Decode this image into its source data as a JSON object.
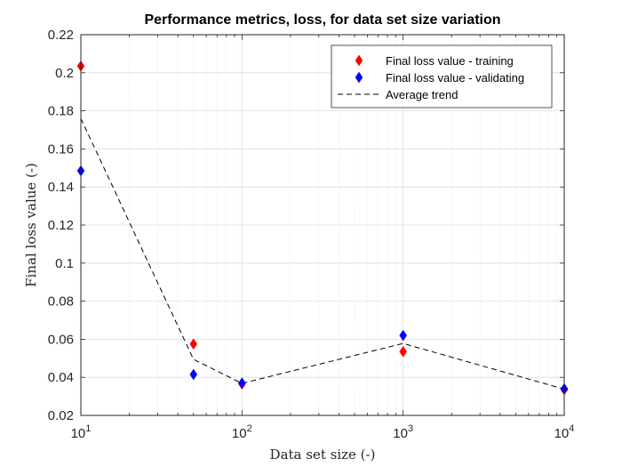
{
  "chart_data": {
    "type": "scatter",
    "title": "Performance metrics, loss, for data set size variation",
    "xlabel": "Data set size (-)",
    "ylabel": "Final loss value (-)",
    "xscale": "log",
    "xlim": [
      10,
      10000
    ],
    "ylim": [
      0.02,
      0.22
    ],
    "x_ticks": [
      {
        "base": "10",
        "exp": "1",
        "value": 10
      },
      {
        "base": "10",
        "exp": "2",
        "value": 100
      },
      {
        "base": "10",
        "exp": "3",
        "value": 1000
      },
      {
        "base": "10",
        "exp": "4",
        "value": 10000
      }
    ],
    "y_ticks": [
      "0.02",
      "0.04",
      "0.06",
      "0.08",
      "0.1",
      "0.12",
      "0.14",
      "0.16",
      "0.18",
      "0.2",
      "0.22"
    ],
    "grid": true,
    "minor_grid": true,
    "legend_position": "top-right",
    "series": [
      {
        "name": "Final loss value - training",
        "marker": "diamond",
        "color": "#ff0000",
        "x": [
          10,
          50,
          100,
          1000,
          10000
        ],
        "y": [
          0.2035,
          0.0575,
          0.0365,
          0.0535,
          0.0335
        ]
      },
      {
        "name": "Final loss value - validating",
        "marker": "diamond",
        "color": "#0000ff",
        "x": [
          10,
          50,
          100,
          1000,
          10000
        ],
        "y": [
          0.1485,
          0.0415,
          0.037,
          0.062,
          0.034
        ]
      },
      {
        "name": "Average trend",
        "marker": "none",
        "line": "dashed",
        "color": "#000000",
        "x": [
          10,
          50,
          100,
          1000,
          10000
        ],
        "y": [
          0.176,
          0.0495,
          0.0368,
          0.0578,
          0.0338
        ]
      }
    ]
  }
}
